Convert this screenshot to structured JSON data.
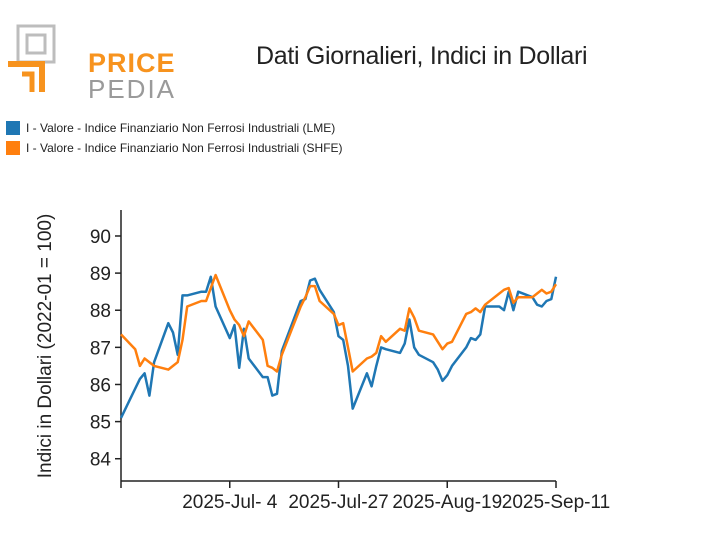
{
  "header": {
    "logo_top": "PRICE",
    "logo_bottom": "PEDIA",
    "title": "Dati Giornalieri, Indici in Dollari"
  },
  "colors": {
    "lme": "#1f77b4",
    "shfe": "#ff7f0e",
    "logo_orange": "#f7931e",
    "logo_gray": "#9a9a9a"
  },
  "chart_data": {
    "type": "line",
    "title": "Dati Giornalieri, Indici in Dollari",
    "xlabel": "",
    "ylabel": "Indici in Dollari (2022-01 = 100)",
    "ylim": [
      83.4,
      90.7
    ],
    "yticks": [
      84,
      85,
      86,
      87,
      88,
      89,
      90
    ],
    "xlim": [
      "2025-06-11",
      "2025-09-11"
    ],
    "xticks": [
      {
        "date": "2025-07-04",
        "label": "2025-Jul- 4"
      },
      {
        "date": "2025-07-27",
        "label": "2025-Jul-27"
      },
      {
        "date": "2025-08-19",
        "label": "2025-Aug-19"
      },
      {
        "date": "2025-09-11",
        "label": "2025-Sep-11"
      }
    ],
    "legend_position": "top-left",
    "grid": false,
    "series": [
      {
        "name": "I - Valore - Indice Finanziario Non Ferrosi Industriali (LME)",
        "points": [
          [
            "2025-06-11",
            85.1
          ],
          [
            "2025-06-15",
            86.15
          ],
          [
            "2025-06-16",
            86.3
          ],
          [
            "2025-06-17",
            85.7
          ],
          [
            "2025-06-18",
            86.6
          ],
          [
            "2025-06-21",
            87.65
          ],
          [
            "2025-06-22",
            87.4
          ],
          [
            "2025-06-23",
            86.8
          ],
          [
            "2025-06-24",
            88.4
          ],
          [
            "2025-06-25",
            88.4
          ],
          [
            "2025-06-28",
            88.5
          ],
          [
            "2025-06-29",
            88.5
          ],
          [
            "2025-06-30",
            88.9
          ],
          [
            "2025-07-01",
            88.1
          ],
          [
            "2025-07-04",
            87.25
          ],
          [
            "2025-07-05",
            87.6
          ],
          [
            "2025-07-06",
            86.45
          ],
          [
            "2025-07-07",
            87.5
          ],
          [
            "2025-07-08",
            86.7
          ],
          [
            "2025-07-11",
            86.2
          ],
          [
            "2025-07-12",
            86.2
          ],
          [
            "2025-07-13",
            85.7
          ],
          [
            "2025-07-14",
            85.75
          ],
          [
            "2025-07-15",
            86.9
          ],
          [
            "2025-07-19",
            88.25
          ],
          [
            "2025-07-20",
            88.3
          ],
          [
            "2025-07-21",
            88.8
          ],
          [
            "2025-07-22",
            88.85
          ],
          [
            "2025-07-23",
            88.55
          ],
          [
            "2025-07-26",
            87.95
          ],
          [
            "2025-07-27",
            87.3
          ],
          [
            "2025-07-28",
            87.2
          ],
          [
            "2025-07-29",
            86.5
          ],
          [
            "2025-07-30",
            85.35
          ],
          [
            "2025-08-02",
            86.3
          ],
          [
            "2025-08-03",
            85.95
          ],
          [
            "2025-08-04",
            86.5
          ],
          [
            "2025-08-05",
            87.0
          ],
          [
            "2025-08-06",
            86.95
          ],
          [
            "2025-08-09",
            86.85
          ],
          [
            "2025-08-10",
            87.1
          ],
          [
            "2025-08-11",
            87.75
          ],
          [
            "2025-08-12",
            87.0
          ],
          [
            "2025-08-13",
            86.8
          ],
          [
            "2025-08-16",
            86.6
          ],
          [
            "2025-08-17",
            86.4
          ],
          [
            "2025-08-18",
            86.1
          ],
          [
            "2025-08-19",
            86.25
          ],
          [
            "2025-08-20",
            86.5
          ],
          [
            "2025-08-23",
            87.0
          ],
          [
            "2025-08-24",
            87.25
          ],
          [
            "2025-08-25",
            87.2
          ],
          [
            "2025-08-26",
            87.35
          ],
          [
            "2025-08-27",
            88.1
          ],
          [
            "2025-08-30",
            88.1
          ],
          [
            "2025-08-31",
            88.0
          ],
          [
            "2025-09-01",
            88.5
          ],
          [
            "2025-09-02",
            88.0
          ],
          [
            "2025-09-03",
            88.5
          ],
          [
            "2025-09-06",
            88.35
          ],
          [
            "2025-09-07",
            88.15
          ],
          [
            "2025-09-08",
            88.1
          ],
          [
            "2025-09-09",
            88.25
          ],
          [
            "2025-09-10",
            88.3
          ],
          [
            "2025-09-11",
            88.9
          ]
        ]
      },
      {
        "name": "I - Valore - Indice Finanziario Non Ferrosi Industriali (SHFE)",
        "points": [
          [
            "2025-06-11",
            87.35
          ],
          [
            "2025-06-14",
            86.95
          ],
          [
            "2025-06-15",
            86.5
          ],
          [
            "2025-06-16",
            86.7
          ],
          [
            "2025-06-17",
            86.6
          ],
          [
            "2025-06-18",
            86.5
          ],
          [
            "2025-06-21",
            86.4
          ],
          [
            "2025-06-22",
            86.5
          ],
          [
            "2025-06-23",
            86.6
          ],
          [
            "2025-06-24",
            87.2
          ],
          [
            "2025-06-25",
            88.1
          ],
          [
            "2025-06-28",
            88.25
          ],
          [
            "2025-06-29",
            88.25
          ],
          [
            "2025-06-30",
            88.6
          ],
          [
            "2025-07-01",
            88.95
          ],
          [
            "2025-07-04",
            88.0
          ],
          [
            "2025-07-05",
            87.75
          ],
          [
            "2025-07-06",
            87.6
          ],
          [
            "2025-07-07",
            87.3
          ],
          [
            "2025-07-08",
            87.7
          ],
          [
            "2025-07-11",
            87.2
          ],
          [
            "2025-07-12",
            86.5
          ],
          [
            "2025-07-13",
            86.45
          ],
          [
            "2025-07-14",
            86.35
          ],
          [
            "2025-07-15",
            86.8
          ],
          [
            "2025-07-19",
            88.1
          ],
          [
            "2025-07-20",
            88.35
          ],
          [
            "2025-07-21",
            88.65
          ],
          [
            "2025-07-22",
            88.65
          ],
          [
            "2025-07-23",
            88.25
          ],
          [
            "2025-07-26",
            87.9
          ],
          [
            "2025-07-27",
            87.6
          ],
          [
            "2025-07-28",
            87.65
          ],
          [
            "2025-07-29",
            87.0
          ],
          [
            "2025-07-30",
            86.35
          ],
          [
            "2025-08-02",
            86.7
          ],
          [
            "2025-08-03",
            86.75
          ],
          [
            "2025-08-04",
            86.85
          ],
          [
            "2025-08-05",
            87.3
          ],
          [
            "2025-08-06",
            87.15
          ],
          [
            "2025-08-09",
            87.5
          ],
          [
            "2025-08-10",
            87.45
          ],
          [
            "2025-08-11",
            88.05
          ],
          [
            "2025-08-12",
            87.8
          ],
          [
            "2025-08-13",
            87.45
          ],
          [
            "2025-08-16",
            87.35
          ],
          [
            "2025-08-17",
            87.15
          ],
          [
            "2025-08-18",
            86.95
          ],
          [
            "2025-08-19",
            87.1
          ],
          [
            "2025-08-20",
            87.15
          ],
          [
            "2025-08-23",
            87.9
          ],
          [
            "2025-08-24",
            87.95
          ],
          [
            "2025-08-25",
            88.05
          ],
          [
            "2025-08-26",
            87.95
          ],
          [
            "2025-08-27",
            88.15
          ],
          [
            "2025-08-30",
            88.45
          ],
          [
            "2025-08-31",
            88.55
          ],
          [
            "2025-09-01",
            88.6
          ],
          [
            "2025-09-02",
            88.2
          ],
          [
            "2025-09-03",
            88.35
          ],
          [
            "2025-09-06",
            88.35
          ],
          [
            "2025-09-07",
            88.45
          ],
          [
            "2025-09-08",
            88.55
          ],
          [
            "2025-09-09",
            88.45
          ],
          [
            "2025-09-10",
            88.5
          ],
          [
            "2025-09-11",
            88.7
          ]
        ]
      }
    ]
  }
}
